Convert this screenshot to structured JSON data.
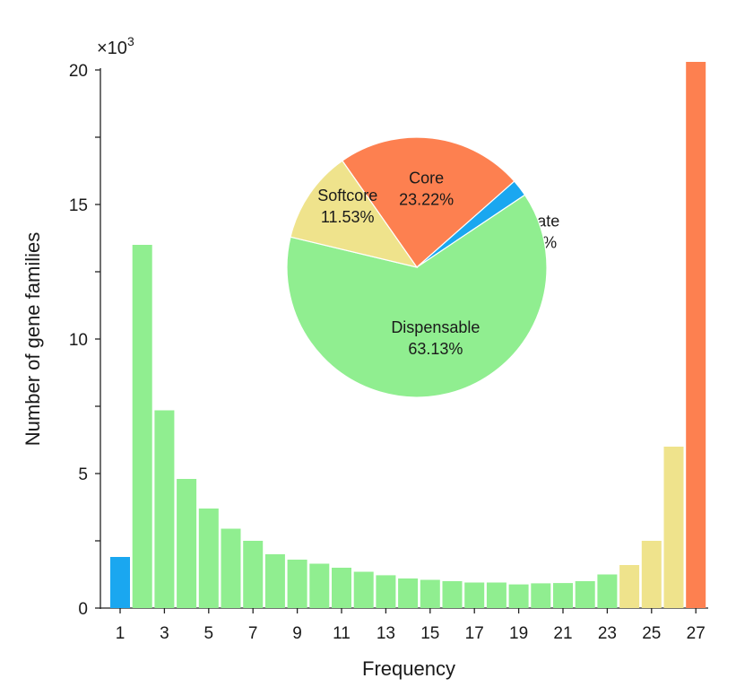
{
  "chart_data": [
    {
      "type": "bar",
      "xlabel": "Frequency",
      "ylabel": "Number of gene families",
      "y_multiplier": "×10",
      "y_multiplier_exp": "3",
      "ylim": [
        0,
        20
      ],
      "yticks": [
        "0",
        "5",
        "10",
        "15",
        "20"
      ],
      "x": [
        1,
        2,
        3,
        4,
        5,
        6,
        7,
        8,
        9,
        10,
        11,
        12,
        13,
        14,
        15,
        16,
        17,
        18,
        19,
        20,
        21,
        22,
        23,
        24,
        25,
        26,
        27
      ],
      "xtick_labels": [
        "1",
        "3",
        "5",
        "7",
        "9",
        "11",
        "13",
        "15",
        "17",
        "19",
        "21",
        "23",
        "25",
        "27"
      ],
      "values": [
        1.9,
        13.5,
        7.35,
        4.8,
        3.7,
        2.95,
        2.5,
        2.0,
        1.8,
        1.65,
        1.5,
        1.35,
        1.22,
        1.1,
        1.05,
        1.0,
        0.95,
        0.95,
        0.88,
        0.92,
        0.93,
        1.0,
        1.25,
        1.6,
        2.5,
        6.0,
        20.3
      ],
      "bar_categories": [
        "Private",
        "Dispensable",
        "Dispensable",
        "Dispensable",
        "Dispensable",
        "Dispensable",
        "Dispensable",
        "Dispensable",
        "Dispensable",
        "Dispensable",
        "Dispensable",
        "Dispensable",
        "Dispensable",
        "Dispensable",
        "Dispensable",
        "Dispensable",
        "Dispensable",
        "Dispensable",
        "Dispensable",
        "Dispensable",
        "Dispensable",
        "Dispensable",
        "Dispensable",
        "Softcore",
        "Softcore",
        "Softcore",
        "Core"
      ]
    },
    {
      "type": "pie",
      "slices": [
        {
          "name": "Core",
          "percent": 23.22,
          "label": "23.22%"
        },
        {
          "name": "Private",
          "percent": 2.11,
          "label": "2.11%"
        },
        {
          "name": "Dispensable",
          "percent": 63.13,
          "label": "63.13%"
        },
        {
          "name": "Softcore",
          "percent": 11.53,
          "label": "11.53%"
        }
      ]
    }
  ],
  "colors": {
    "Core": "#fd8050",
    "Private": "#1aa7f0",
    "Dispensable": "#90ee90",
    "Softcore": "#efe38c"
  }
}
